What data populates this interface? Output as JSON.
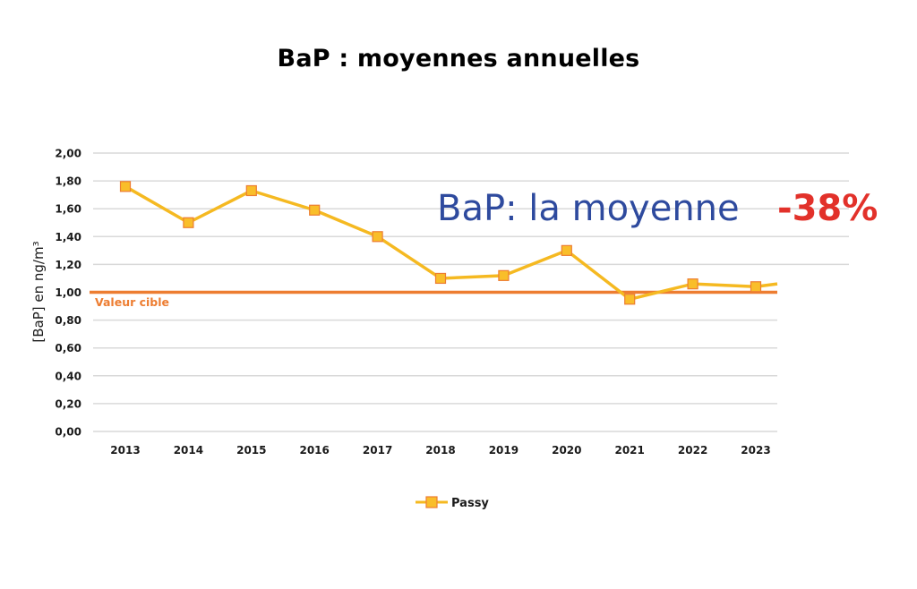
{
  "title": "BaP : moyennes annuelles",
  "annotation": {
    "text": "BaP: la moyenne",
    "value": "-38%",
    "text_color": "#2E4A9E",
    "value_color": "#E2312A"
  },
  "target": {
    "label": "Valeur cible",
    "value": 1.0,
    "color": "#ED7D31"
  },
  "legend": {
    "label": "Passy"
  },
  "colors": {
    "series_line": "#F5B921",
    "marker_fill": "#F9BE2A",
    "marker_stroke": "#ED7D31",
    "grid": "#D9D9D9"
  },
  "chart_data": {
    "type": "line",
    "title": "BaP : moyennes annuelles",
    "xlabel": "",
    "ylabel": "[BaP] en ng/m³",
    "ylim": [
      0,
      2.0
    ],
    "ytick_labels": [
      "0,00",
      "0,20",
      "0,40",
      "0,60",
      "0,80",
      "1,00",
      "1,20",
      "1,40",
      "1,60",
      "1,80",
      "2,00"
    ],
    "yticks": [
      0,
      0.2,
      0.4,
      0.6,
      0.8,
      1.0,
      1.2,
      1.4,
      1.6,
      1.8,
      2.0
    ],
    "categories": [
      "2013",
      "2014",
      "2015",
      "2016",
      "2017",
      "2018",
      "2019",
      "2020",
      "2021",
      "2022",
      "2023"
    ],
    "series": [
      {
        "name": "Passy",
        "values": [
          1.76,
          1.5,
          1.73,
          1.59,
          1.4,
          1.1,
          1.12,
          1.3,
          0.95,
          1.06,
          1.04
        ],
        "trailing_value": 1.06
      }
    ],
    "reference_lines": [
      {
        "label": "Valeur cible",
        "value": 1.0
      }
    ],
    "annotations": [
      {
        "text": "BaP: la moyenne -38%"
      }
    ],
    "grid": true,
    "legend_position": "bottom"
  }
}
